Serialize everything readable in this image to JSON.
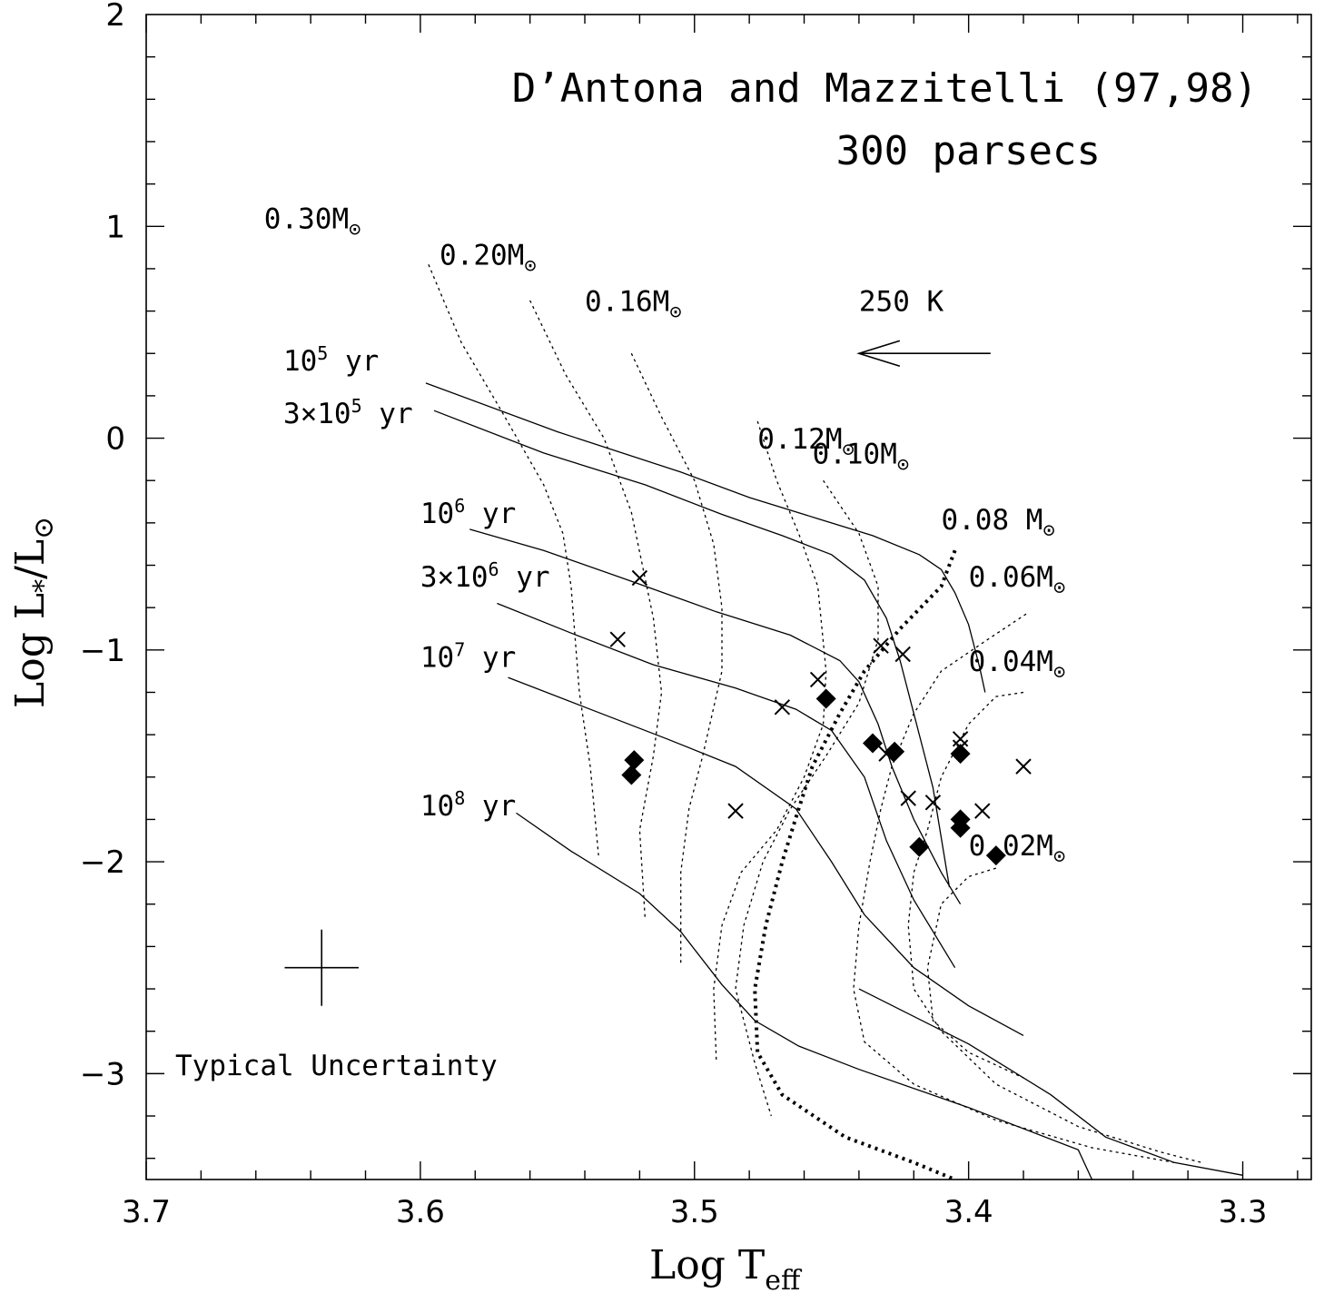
{
  "chart_data": {
    "type": "scatter",
    "title": "D’Antona and Mazzitelli (97,98)",
    "subtitle": "300 parsecs",
    "xlabel": "Log T",
    "xlabel_sub": "eff",
    "ylabel": "Log L",
    "ylabel_sub": "*",
    "ylabel_tail": "/L",
    "sun_symbol": "⊙",
    "xlim": [
      3.7,
      3.275
    ],
    "ylim": [
      -3.5,
      2
    ],
    "x_reversed": true,
    "x_ticks": [
      3.7,
      3.6,
      3.5,
      3.4,
      3.3
    ],
    "x_tick_labels": [
      "3.7",
      "3.6",
      "3.5",
      "3.4",
      "3.3"
    ],
    "y_ticks": [
      2,
      1,
      0,
      -1,
      -2,
      -3
    ],
    "y_tick_labels": [
      "2",
      "1",
      "0",
      "−1",
      "−2",
      "−3"
    ],
    "grid": false,
    "arrow_label": "250 K",
    "arrow": {
      "from": [
        3.392,
        0.4
      ],
      "to": [
        3.44,
        0.4
      ]
    },
    "error_bar": {
      "label": "Typical Uncertainty",
      "x": 3.636,
      "y": -2.5,
      "dx": 0.0135,
      "dy": 0.18
    },
    "isochrones": [
      {
        "name": "10⁵ yr",
        "label_parts": [
          "10",
          "5",
          " yr"
        ],
        "label_at": [
          3.65,
          0.32
        ],
        "points": [
          [
            3.598,
            0.26
          ],
          [
            3.55,
            0.03
          ],
          [
            3.505,
            -0.16
          ],
          [
            3.48,
            -0.28
          ],
          [
            3.455,
            -0.38
          ],
          [
            3.435,
            -0.46
          ],
          [
            3.418,
            -0.55
          ],
          [
            3.41,
            -0.62
          ],
          [
            3.405,
            -0.73
          ],
          [
            3.4,
            -0.88
          ],
          [
            3.396,
            -1.08
          ],
          [
            3.394,
            -1.2
          ]
        ]
      },
      {
        "name": "3×10⁵ yr",
        "label_parts": [
          "3×10",
          "5",
          " yr"
        ],
        "label_at": [
          3.65,
          0.07
        ],
        "points": [
          [
            3.595,
            0.13
          ],
          [
            3.555,
            -0.07
          ],
          [
            3.518,
            -0.22
          ],
          [
            3.49,
            -0.36
          ],
          [
            3.468,
            -0.46
          ],
          [
            3.45,
            -0.55
          ],
          [
            3.438,
            -0.67
          ],
          [
            3.43,
            -0.85
          ],
          [
            3.425,
            -1.05
          ],
          [
            3.42,
            -1.3
          ],
          [
            3.413,
            -1.65
          ],
          [
            3.407,
            -2.12
          ]
        ]
      },
      {
        "name": "10⁶ yr",
        "label_parts": [
          "10",
          "6",
          " yr"
        ],
        "label_at": [
          3.6,
          -0.4
        ],
        "points": [
          [
            3.582,
            -0.43
          ],
          [
            3.555,
            -0.53
          ],
          [
            3.522,
            -0.68
          ],
          [
            3.492,
            -0.82
          ],
          [
            3.465,
            -0.93
          ],
          [
            3.447,
            -1.05
          ],
          [
            3.44,
            -1.15
          ],
          [
            3.433,
            -1.35
          ],
          [
            3.428,
            -1.55
          ],
          [
            3.42,
            -1.8
          ],
          [
            3.41,
            -2.05
          ],
          [
            3.403,
            -2.2
          ]
        ]
      },
      {
        "name": "3×10⁶ yr",
        "label_parts": [
          "3×10",
          "6",
          " yr"
        ],
        "label_at": [
          3.6,
          -0.7
        ],
        "points": [
          [
            3.572,
            -0.78
          ],
          [
            3.545,
            -0.92
          ],
          [
            3.515,
            -1.07
          ],
          [
            3.485,
            -1.18
          ],
          [
            3.463,
            -1.28
          ],
          [
            3.45,
            -1.38
          ],
          [
            3.438,
            -1.6
          ],
          [
            3.43,
            -1.9
          ],
          [
            3.42,
            -2.18
          ],
          [
            3.405,
            -2.5
          ]
        ]
      },
      {
        "name": "10⁷ yr",
        "label_parts": [
          "10",
          "7",
          " yr"
        ],
        "label_at": [
          3.6,
          -1.08
        ],
        "points": [
          [
            3.568,
            -1.13
          ],
          [
            3.54,
            -1.27
          ],
          [
            3.51,
            -1.42
          ],
          [
            3.485,
            -1.55
          ],
          [
            3.463,
            -1.75
          ],
          [
            3.45,
            -2.0
          ],
          [
            3.438,
            -2.25
          ],
          [
            3.42,
            -2.5
          ],
          [
            3.4,
            -2.68
          ],
          [
            3.38,
            -2.82
          ]
        ]
      },
      {
        "name": "10⁸ yr",
        "label_parts": [
          "10",
          "8",
          " yr"
        ],
        "label_at": [
          3.6,
          -1.78
        ],
        "points": [
          [
            3.565,
            -1.77
          ],
          [
            3.545,
            -1.95
          ],
          [
            3.52,
            -2.15
          ],
          [
            3.505,
            -2.33
          ],
          [
            3.49,
            -2.58
          ],
          [
            3.478,
            -2.75
          ],
          [
            3.462,
            -2.87
          ],
          [
            3.44,
            -2.98
          ],
          [
            3.4,
            -3.16
          ],
          [
            3.36,
            -3.36
          ],
          [
            3.355,
            -3.5
          ]
        ]
      },
      {
        "name": "",
        "label_parts": [],
        "points": [
          [
            3.44,
            -2.6
          ],
          [
            3.4,
            -2.86
          ],
          [
            3.37,
            -3.1
          ],
          [
            3.35,
            -3.3
          ],
          [
            3.325,
            -3.42
          ],
          [
            3.3,
            -3.48
          ]
        ]
      }
    ],
    "tracks": [
      {
        "name": "0.30M⊙",
        "label": "0.30M",
        "label_at": [
          3.657,
          0.99
        ],
        "bold": false,
        "points": [
          [
            3.597,
            0.82
          ],
          [
            3.585,
            0.45
          ],
          [
            3.57,
            0.12
          ],
          [
            3.555,
            -0.22
          ],
          [
            3.548,
            -0.45
          ],
          [
            3.545,
            -0.7
          ],
          [
            3.542,
            -1.2
          ],
          [
            3.538,
            -1.55
          ],
          [
            3.535,
            -1.97
          ]
        ]
      },
      {
        "name": "0.20M⊙",
        "label": "0.20M",
        "label_at": [
          3.593,
          0.82
        ],
        "bold": false,
        "points": [
          [
            3.56,
            0.65
          ],
          [
            3.547,
            0.3
          ],
          [
            3.533,
            0.0
          ],
          [
            3.523,
            -0.35
          ],
          [
            3.515,
            -0.85
          ],
          [
            3.512,
            -1.2
          ],
          [
            3.515,
            -1.5
          ],
          [
            3.52,
            -1.85
          ],
          [
            3.518,
            -2.27
          ]
        ]
      },
      {
        "name": "0.16M⊙",
        "label": "0.16M",
        "label_at": [
          3.54,
          0.6
        ],
        "bold": false,
        "points": [
          [
            3.523,
            0.4
          ],
          [
            3.512,
            0.1
          ],
          [
            3.5,
            -0.2
          ],
          [
            3.493,
            -0.5
          ],
          [
            3.49,
            -0.8
          ],
          [
            3.49,
            -1.1
          ],
          [
            3.497,
            -1.5
          ],
          [
            3.502,
            -1.75
          ],
          [
            3.505,
            -2.05
          ],
          [
            3.505,
            -2.48
          ]
        ]
      },
      {
        "name": "0.12M⊙",
        "label": "0.12M",
        "label_at": [
          3.477,
          -0.05
        ],
        "bold": false,
        "points": [
          [
            3.477,
            0.08
          ],
          [
            3.47,
            -0.2
          ],
          [
            3.462,
            -0.45
          ],
          [
            3.455,
            -0.7
          ],
          [
            3.452,
            -1.1
          ],
          [
            3.453,
            -1.35
          ],
          [
            3.46,
            -1.6
          ],
          [
            3.47,
            -1.85
          ],
          [
            3.483,
            -2.05
          ],
          [
            3.49,
            -2.3
          ],
          [
            3.493,
            -2.6
          ],
          [
            3.492,
            -2.95
          ]
        ]
      },
      {
        "name": "0.10M⊙",
        "label": "0.10M",
        "label_at": [
          3.457,
          -0.12
        ],
        "bold": false,
        "points": [
          [
            3.453,
            -0.2
          ],
          [
            3.44,
            -0.45
          ],
          [
            3.433,
            -0.7
          ],
          [
            3.433,
            -0.95
          ],
          [
            3.44,
            -1.25
          ],
          [
            3.452,
            -1.5
          ],
          [
            3.465,
            -1.75
          ],
          [
            3.475,
            -2.0
          ],
          [
            3.482,
            -2.3
          ],
          [
            3.485,
            -2.6
          ],
          [
            3.478,
            -2.95
          ],
          [
            3.472,
            -3.2
          ]
        ]
      },
      {
        "name": "0.08 M⊙",
        "label": "0.08 M",
        "label_at": [
          3.41,
          -0.43
        ],
        "bold": true,
        "points": [
          [
            3.405,
            -0.53
          ],
          [
            3.41,
            -0.7
          ],
          [
            3.425,
            -0.9
          ],
          [
            3.438,
            -1.1
          ],
          [
            3.447,
            -1.3
          ],
          [
            3.457,
            -1.55
          ],
          [
            3.462,
            -1.75
          ],
          [
            3.468,
            -2.0
          ],
          [
            3.474,
            -2.3
          ],
          [
            3.478,
            -2.6
          ],
          [
            3.477,
            -2.9
          ],
          [
            3.468,
            -3.1
          ],
          [
            3.445,
            -3.3
          ],
          [
            3.42,
            -3.42
          ],
          [
            3.405,
            -3.5
          ]
        ]
      },
      {
        "name": "0.06M⊙",
        "label": "0.06M",
        "label_at": [
          3.4,
          -0.7
        ],
        "bold": false,
        "points": [
          [
            3.379,
            -0.83
          ],
          [
            3.393,
            -0.95
          ],
          [
            3.41,
            -1.1
          ],
          [
            3.42,
            -1.3
          ],
          [
            3.428,
            -1.55
          ],
          [
            3.432,
            -1.75
          ],
          [
            3.436,
            -2.0
          ],
          [
            3.44,
            -2.3
          ],
          [
            3.442,
            -2.6
          ],
          [
            3.438,
            -2.85
          ],
          [
            3.42,
            -3.05
          ],
          [
            3.39,
            -3.22
          ],
          [
            3.355,
            -3.35
          ],
          [
            3.325,
            -3.42
          ]
        ]
      },
      {
        "name": "0.04M⊙",
        "label": "0.04M",
        "label_at": [
          3.4,
          -1.1
        ],
        "bold": false,
        "points": [
          [
            3.38,
            -1.2
          ],
          [
            3.39,
            -1.22
          ],
          [
            3.4,
            -1.35
          ],
          [
            3.41,
            -1.6
          ],
          [
            3.415,
            -1.85
          ],
          [
            3.42,
            -2.05
          ],
          [
            3.422,
            -2.3
          ],
          [
            3.42,
            -2.6
          ],
          [
            3.41,
            -2.8
          ],
          [
            3.39,
            -3.05
          ],
          [
            3.36,
            -3.25
          ],
          [
            3.33,
            -3.37
          ],
          [
            3.315,
            -3.42
          ]
        ]
      },
      {
        "name": "0.02M⊙",
        "label": "0.02M",
        "label_at": [
          3.4,
          -1.97
        ],
        "bold": false,
        "points": [
          [
            3.39,
            -2.03
          ],
          [
            3.4,
            -2.07
          ],
          [
            3.41,
            -2.2
          ],
          [
            3.415,
            -2.5
          ],
          [
            3.413,
            -2.75
          ],
          [
            3.4,
            -2.9
          ],
          [
            3.38,
            -3.02
          ]
        ]
      }
    ],
    "series": [
      {
        "name": "",
        "marker": "cross",
        "points": [
          [
            3.52,
            -0.66
          ],
          [
            3.528,
            -0.95
          ],
          [
            3.468,
            -1.27
          ],
          [
            3.455,
            -1.14
          ],
          [
            3.432,
            -0.98
          ],
          [
            3.424,
            -1.02
          ],
          [
            3.403,
            -1.42
          ],
          [
            3.403,
            -1.46
          ],
          [
            3.43,
            -1.49
          ],
          [
            3.38,
            -1.55
          ],
          [
            3.422,
            -1.7
          ],
          [
            3.413,
            -1.72
          ],
          [
            3.395,
            -1.76
          ],
          [
            3.485,
            -1.76
          ]
        ]
      },
      {
        "name": "",
        "marker": "diamond",
        "points": [
          [
            3.452,
            -1.23
          ],
          [
            3.435,
            -1.44
          ],
          [
            3.427,
            -1.48
          ],
          [
            3.403,
            -1.49
          ],
          [
            3.522,
            -1.52
          ],
          [
            3.523,
            -1.59
          ],
          [
            3.403,
            -1.8
          ],
          [
            3.403,
            -1.84
          ],
          [
            3.418,
            -1.93
          ],
          [
            3.39,
            -1.97
          ]
        ]
      }
    ]
  }
}
